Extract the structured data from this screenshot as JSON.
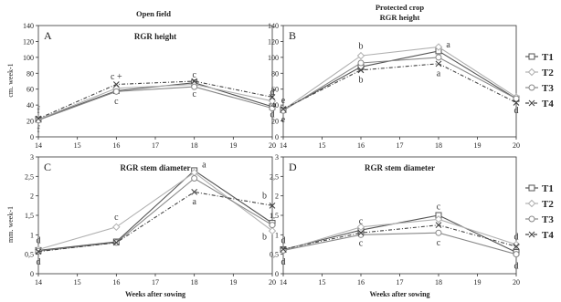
{
  "figure": {
    "column_titles": [
      "Open field",
      "Protected crop"
    ],
    "ylabels": [
      "cm. week-1",
      "mm. week-1"
    ],
    "xlabel": "Weeks after sowing"
  },
  "legend": [
    "T1",
    "T2",
    "T3",
    "T4"
  ],
  "series_style": {
    "T1": {
      "color": "#555555",
      "marker": "square",
      "dash": ""
    },
    "T2": {
      "color": "#b0b0b0",
      "marker": "diamond",
      "dash": ""
    },
    "T3": {
      "color": "#888888",
      "marker": "circle",
      "dash": ""
    },
    "T4": {
      "color": "#444444",
      "marker": "x",
      "dash": "4,2,1,2"
    }
  },
  "chart_data": [
    {
      "type": "line",
      "panel": "A",
      "title": "RGR height",
      "title_line2": "",
      "x": [
        14,
        16,
        18,
        20
      ],
      "xlim": [
        14,
        20
      ],
      "ylim": [
        0,
        140
      ],
      "yticks": [
        0,
        20,
        40,
        60,
        80,
        100,
        120,
        140
      ],
      "series": [
        {
          "name": "T1",
          "values": [
            22,
            58,
            68,
            38
          ]
        },
        {
          "name": "T2",
          "values": [
            22,
            61,
            66,
            45
          ]
        },
        {
          "name": "T3",
          "values": [
            21,
            57,
            63,
            36
          ]
        },
        {
          "name": "T4",
          "values": [
            23,
            66,
            70,
            50
          ]
        }
      ],
      "annotations": [
        {
          "text": "f",
          "x": 14,
          "y": 33
        },
        {
          "text": "f",
          "x": 14,
          "y": 9
        },
        {
          "text": "c +",
          "x": 16,
          "y": 76
        },
        {
          "text": "c",
          "x": 16,
          "y": 45
        },
        {
          "text": "c",
          "x": 18,
          "y": 78
        },
        {
          "text": "c",
          "x": 18,
          "y": 54
        },
        {
          "text": "d",
          "x": 20,
          "y": 56
        },
        {
          "text": "d",
          "x": 20,
          "y": 28
        }
      ]
    },
    {
      "type": "line",
      "panel": "B",
      "title": "Protected crop",
      "title_line2": "RGR height",
      "x": [
        14,
        16,
        18,
        20
      ],
      "xlim": [
        14,
        20
      ],
      "ylim": [
        0,
        140
      ],
      "yticks": [
        0,
        20,
        40,
        60,
        80,
        100,
        120,
        140
      ],
      "series": [
        {
          "name": "T1",
          "values": [
            34,
            88,
            108,
            48
          ]
        },
        {
          "name": "T2",
          "values": [
            34,
            102,
            113,
            50
          ]
        },
        {
          "name": "T3",
          "values": [
            33,
            93,
            100,
            48
          ]
        },
        {
          "name": "T4",
          "values": [
            35,
            84,
            92,
            43
          ]
        }
      ],
      "annotations": [
        {
          "text": "e",
          "x": 14,
          "y": 46
        },
        {
          "text": "e",
          "x": 14,
          "y": 22
        },
        {
          "text": "b",
          "x": 16,
          "y": 114
        },
        {
          "text": "b",
          "x": 16,
          "y": 72
        },
        {
          "text": "a",
          "x": 18.25,
          "y": 116
        },
        {
          "text": "a",
          "x": 18,
          "y": 80
        },
        {
          "text": "d",
          "x": 20,
          "y": 33
        }
      ]
    },
    {
      "type": "line",
      "panel": "C",
      "title": "RGR stem diameter",
      "title_line2": "",
      "x": [
        14,
        16,
        18,
        20
      ],
      "xlim": [
        14,
        20
      ],
      "ylim": [
        0,
        3
      ],
      "yticks": [
        0,
        0.5,
        1,
        1.5,
        2,
        2.5,
        3
      ],
      "ytick_labels": [
        "0",
        "0,5",
        "1",
        "1,5",
        "2",
        "2,5",
        "3"
      ],
      "series": [
        {
          "name": "T1",
          "values": [
            0.6,
            0.82,
            2.65,
            1.3
          ]
        },
        {
          "name": "T2",
          "values": [
            0.62,
            1.2,
            2.6,
            1.1
          ]
        },
        {
          "name": "T3",
          "values": [
            0.58,
            0.8,
            2.45,
            1.25
          ]
        },
        {
          "name": "T4",
          "values": [
            0.57,
            0.8,
            2.1,
            1.75
          ]
        }
      ],
      "annotations": [
        {
          "text": "d",
          "x": 14,
          "y": 0.85
        },
        {
          "text": "d",
          "x": 14,
          "y": 0.3
        },
        {
          "text": "c",
          "x": 16,
          "y": 1.45
        },
        {
          "text": "a",
          "x": 18.25,
          "y": 2.8
        },
        {
          "text": "a",
          "x": 18,
          "y": 1.85
        },
        {
          "text": "b",
          "x": 19.8,
          "y": 2.0
        },
        {
          "text": "b",
          "x": 19.8,
          "y": 0.95
        }
      ]
    },
    {
      "type": "line",
      "panel": "D",
      "title": "RGR stem diameter",
      "title_line2": "",
      "x": [
        14,
        16,
        18,
        20
      ],
      "xlim": [
        14,
        20
      ],
      "ylim": [
        0,
        3
      ],
      "yticks": [
        0,
        0.5,
        1,
        1.5,
        2,
        2.5,
        3
      ],
      "ytick_labels": [
        "0",
        "0,5",
        "1",
        "1,5",
        "2",
        "2,5",
        "3"
      ],
      "series": [
        {
          "name": "T1",
          "values": [
            0.62,
            1.12,
            1.5,
            0.55
          ]
        },
        {
          "name": "T2",
          "values": [
            0.6,
            1.2,
            1.4,
            0.75
          ]
        },
        {
          "name": "T3",
          "values": [
            0.6,
            1.0,
            1.05,
            0.5
          ]
        },
        {
          "name": "T4",
          "values": [
            0.63,
            1.05,
            1.25,
            0.7
          ]
        }
      ],
      "annotations": [
        {
          "text": "d",
          "x": 14,
          "y": 0.85
        },
        {
          "text": "d",
          "x": 14,
          "y": 0.3
        },
        {
          "text": "c",
          "x": 16,
          "y": 1.35
        },
        {
          "text": "c",
          "x": 16,
          "y": 0.78
        },
        {
          "text": "c",
          "x": 18,
          "y": 1.72
        },
        {
          "text": "c",
          "x": 18,
          "y": 0.8
        },
        {
          "text": "d",
          "x": 20,
          "y": 0.95
        },
        {
          "text": "d",
          "x": 20,
          "y": 0.2
        }
      ]
    }
  ]
}
